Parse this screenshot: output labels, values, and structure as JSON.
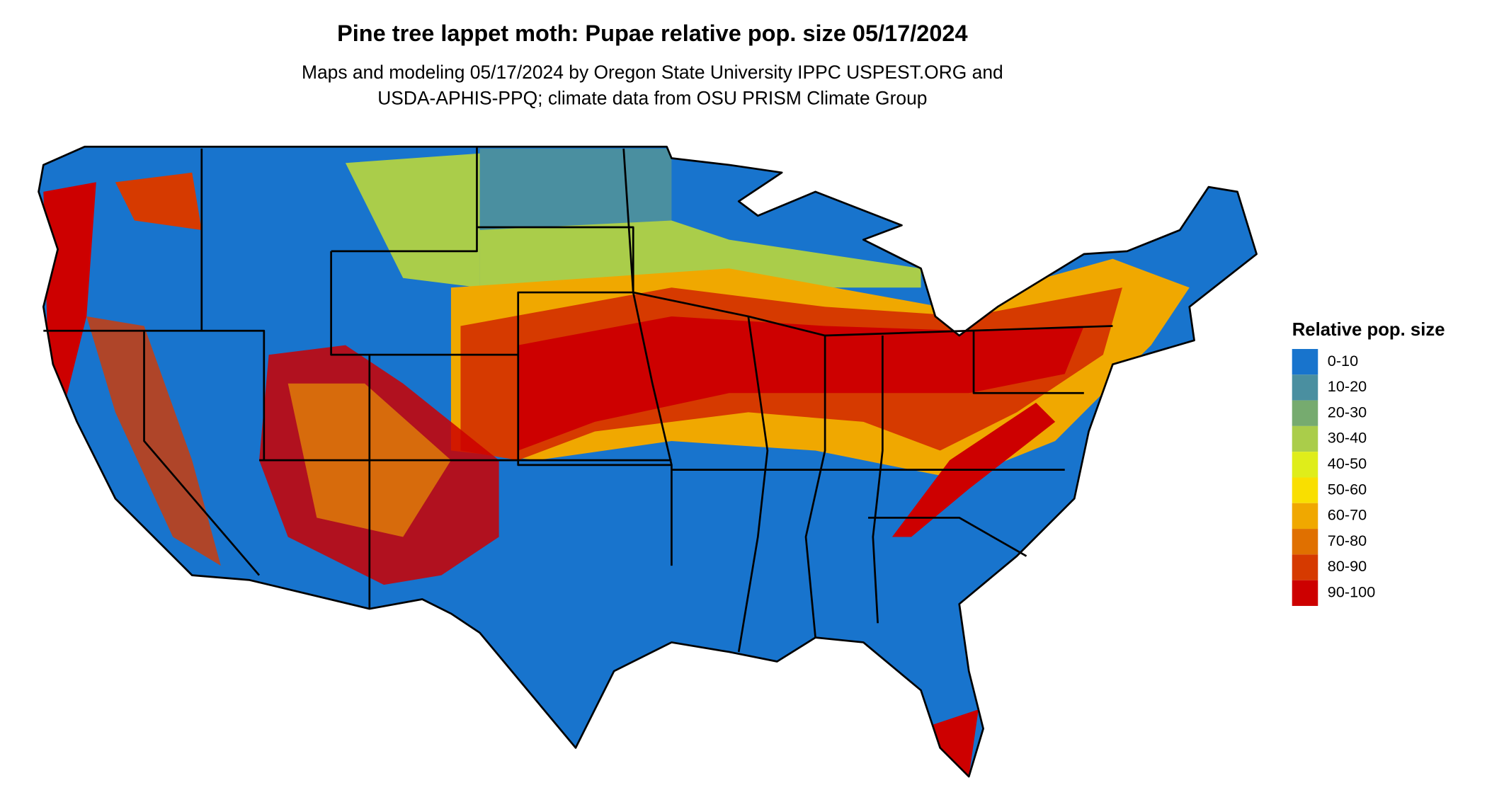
{
  "header": {
    "title": "Pine tree lappet moth: Pupae relative pop. size 05/17/2024",
    "subtitle": [
      "Maps and modeling 05/17/2024 by Oregon State University IPPC USPEST.ORG and",
      "USDA-APHIS-PPQ; climate data from OSU PRISM Climate Group"
    ]
  },
  "legend": {
    "title": "Relative pop. size",
    "items": [
      {
        "label": "0-10",
        "color": "#1874cd"
      },
      {
        "label": "10-20",
        "color": "#4a8fa0"
      },
      {
        "label": "20-30",
        "color": "#76ab6f"
      },
      {
        "label": "30-40",
        "color": "#aacd4a"
      },
      {
        "label": "40-50",
        "color": "#dfed1a"
      },
      {
        "label": "50-60",
        "color": "#f9df00"
      },
      {
        "label": "60-70",
        "color": "#f0a800"
      },
      {
        "label": "70-80",
        "color": "#e07000"
      },
      {
        "label": "80-90",
        "color": "#d63a00"
      },
      {
        "label": "90-100",
        "color": "#cd0000"
      }
    ]
  }
}
